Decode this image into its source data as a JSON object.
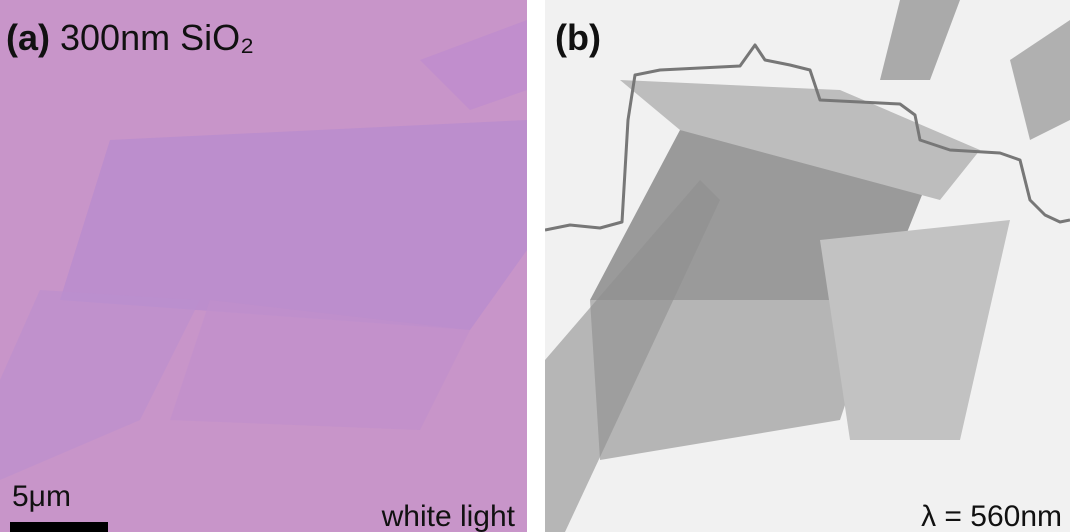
{
  "panel_a": {
    "label": "(a)",
    "title": "300nm SiO₂",
    "scale_bar": "5μm",
    "illumination": "white light"
  },
  "panel_b": {
    "label": "(b)",
    "illumination": "λ = 560nm"
  }
}
